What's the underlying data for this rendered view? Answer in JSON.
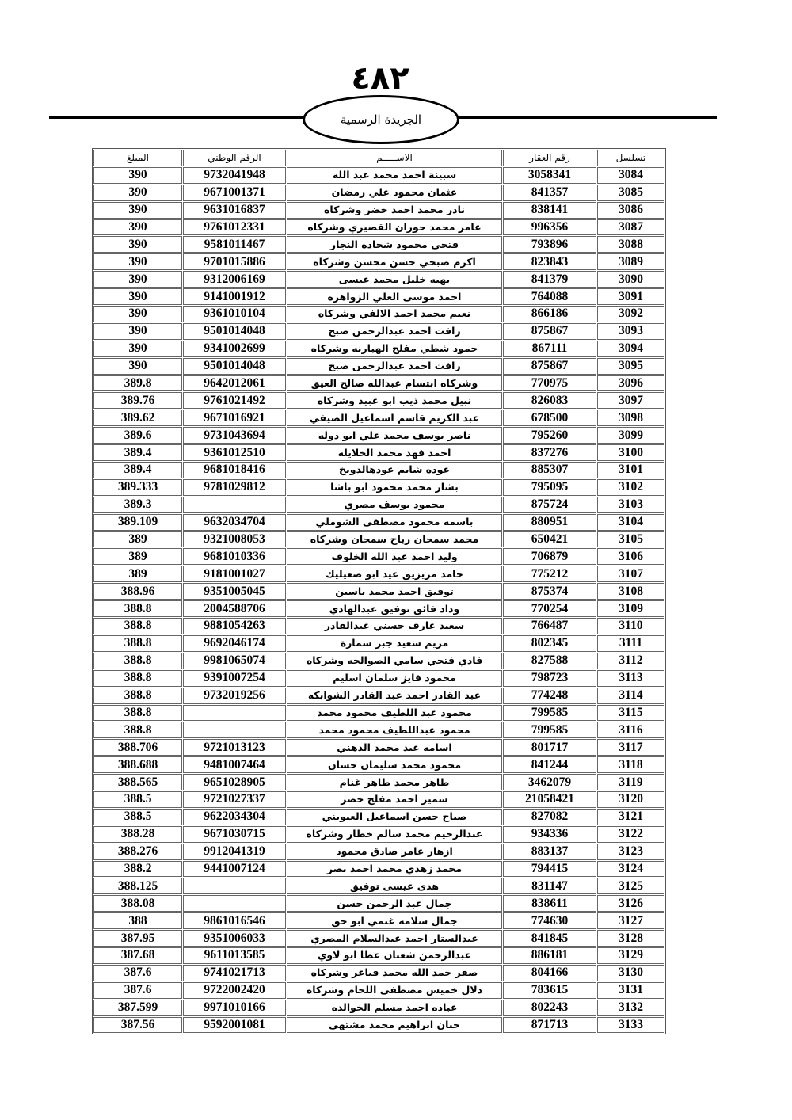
{
  "header": {
    "page_number": "٤٨٢",
    "publication": "الجريدة الرسمية"
  },
  "table": {
    "columns": {
      "serial": "تسلسل",
      "property": "رقم العقار",
      "name": "الاســـــم",
      "national_id": "الرقم الوطني",
      "amount": "المبلغ"
    },
    "rows": [
      [
        "3084",
        "3058341",
        "سبينة احمد محمد عبد الله",
        "9732041948",
        "390"
      ],
      [
        "3085",
        "841357",
        "عثمان محمود علي رمضان",
        "9671001371",
        "390"
      ],
      [
        "3086",
        "838141",
        "نادر محمد احمد خضر وشركاه",
        "9631016837",
        "390"
      ],
      [
        "3087",
        "996356",
        "عامر محمد حوران القصيري وشركاه",
        "9761012331",
        "390"
      ],
      [
        "3088",
        "793896",
        "فتحي محمود شحاده النجار",
        "9581011467",
        "390"
      ],
      [
        "3089",
        "823843",
        "اكرم صبحي حسن محسن وشركاه",
        "9701015886",
        "390"
      ],
      [
        "3090",
        "841379",
        "بهيه خليل محمد عيسى",
        "9312006169",
        "390"
      ],
      [
        "3091",
        "764088",
        "احمد موسى العلي الزواهره",
        "9141001912",
        "390"
      ],
      [
        "3092",
        "866186",
        "نعيم محمد احمد الالفي وشركاه",
        "9361010104",
        "390"
      ],
      [
        "3093",
        "875867",
        "رافت احمد عبدالرحمن صبح",
        "9501014048",
        "390"
      ],
      [
        "3094",
        "867111",
        "حمود شطي مفلح الهبارنه وشركاه",
        "9341002699",
        "390"
      ],
      [
        "3095",
        "875867",
        "رافت احمد عبدالرحمن صبح",
        "9501014048",
        "390"
      ],
      [
        "3096",
        "770975",
        "وشركاه ابتسام عبدالله صالح العيق",
        "9642012061",
        "389.8"
      ],
      [
        "3097",
        "826083",
        "نبيل محمد ذيب ابو عبيد وشركاه",
        "9761021492",
        "389.76"
      ],
      [
        "3098",
        "678500",
        "عبد الكريم قاسم اسماعيل الصيفي",
        "9671016921",
        "389.62"
      ],
      [
        "3099",
        "795260",
        "ناصر يوسف محمد علي ابو دوله",
        "9731043694",
        "389.6"
      ],
      [
        "3100",
        "837276",
        "احمد فهد محمد الخلايله",
        "9361012510",
        "389.4"
      ],
      [
        "3101",
        "885307",
        "عوده شايم عودهالدويخ",
        "9681018416",
        "389.4"
      ],
      [
        "3102",
        "795095",
        "بشار محمد محمود ابو باشا",
        "9781029812",
        "389.333"
      ],
      [
        "3103",
        "875724",
        "محمود يوسف مصري",
        "",
        "389.3"
      ],
      [
        "3104",
        "880951",
        "باسمه محمود مصطفى الشوملي",
        "9632034704",
        "389.109"
      ],
      [
        "3105",
        "650421",
        "محمد سمحان رباح سمحان وشركاه",
        "9321008053",
        "389"
      ],
      [
        "3106",
        "706879",
        "وليد احمد عبد الله الخلوف",
        "9681010336",
        "389"
      ],
      [
        "3107",
        "775212",
        "حامد مريزيق عيد ابو صعيليك",
        "9181001027",
        "389"
      ],
      [
        "3108",
        "875374",
        "توفيق احمد محمد ياسين",
        "9351005045",
        "388.96"
      ],
      [
        "3109",
        "770254",
        "وداد فائق توفيق عبدالهادي",
        "2004588706",
        "388.8"
      ],
      [
        "3110",
        "766487",
        "سعيد عارف حسني عبدالقادر",
        "9881054263",
        "388.8"
      ],
      [
        "3111",
        "802345",
        "مريم سعيد جبر سمارة",
        "9692046174",
        "388.8"
      ],
      [
        "3112",
        "827588",
        "فادي فتحي سامي الصوالحه وشركاه",
        "9981065074",
        "388.8"
      ],
      [
        "3113",
        "798723",
        "محمود فايز سلمان اسليم",
        "9391007254",
        "388.8"
      ],
      [
        "3114",
        "774248",
        "عبد القادر احمد عبد القادر الشوابكه",
        "9732019256",
        "388.8"
      ],
      [
        "3115",
        "799585",
        "محمود عبد اللطيف محمود محمد",
        "",
        "388.8"
      ],
      [
        "3116",
        "799585",
        "محمود عبداللطيف محمود محمد",
        "",
        "388.8"
      ],
      [
        "3117",
        "801717",
        "اسامه عيد محمد الدهني",
        "9721013123",
        "388.706"
      ],
      [
        "3118",
        "841244",
        "محمود محمد سليمان حسان",
        "9481007464",
        "388.688"
      ],
      [
        "3119",
        "3462079",
        "طاهر محمد طاهر غنام",
        "9651028905",
        "388.565"
      ],
      [
        "3120",
        "21058421",
        "سمير احمد مفلح خضر",
        "9721027337",
        "388.5"
      ],
      [
        "3121",
        "827082",
        "صباح حسن اسماعيل العبويني",
        "9622034304",
        "388.5"
      ],
      [
        "3122",
        "934336",
        "عبدالرحيم محمد سالم خطار وشركاه",
        "9671030715",
        "388.28"
      ],
      [
        "3123",
        "883137",
        "ازهار عامر صادق محمود",
        "9912041319",
        "388.276"
      ],
      [
        "3124",
        "794415",
        "محمد زهدي محمد احمد نصر",
        "9441007124",
        "388.2"
      ],
      [
        "3125",
        "831147",
        "هدى عيسى توفيق",
        "",
        "388.125"
      ],
      [
        "3126",
        "838611",
        "جمال عبد الرحمن حسن",
        "",
        "388.08"
      ],
      [
        "3127",
        "774630",
        "جمال سلامه غنمي ابو حق",
        "9861016546",
        "388"
      ],
      [
        "3128",
        "841845",
        "عبدالستار احمد عبدالسلام المصري",
        "9351006033",
        "387.95"
      ],
      [
        "3129",
        "886181",
        "عبدالرحمن شعبان عطا ابو لاوي",
        "9611013585",
        "387.68"
      ],
      [
        "3130",
        "804166",
        "صقر حمد الله محمد قباعر وشركاه",
        "9741021713",
        "387.6"
      ],
      [
        "3131",
        "783615",
        "دلال خميس مصطفى اللحام وشركاه",
        "9722002420",
        "387.6"
      ],
      [
        "3132",
        "802243",
        "عباده احمد مسلم الخوالده",
        "9971010166",
        "387.599"
      ],
      [
        "3133",
        "871713",
        "حنان ابراهيم محمد مشتهي",
        "9592001081",
        "387.56"
      ]
    ]
  }
}
